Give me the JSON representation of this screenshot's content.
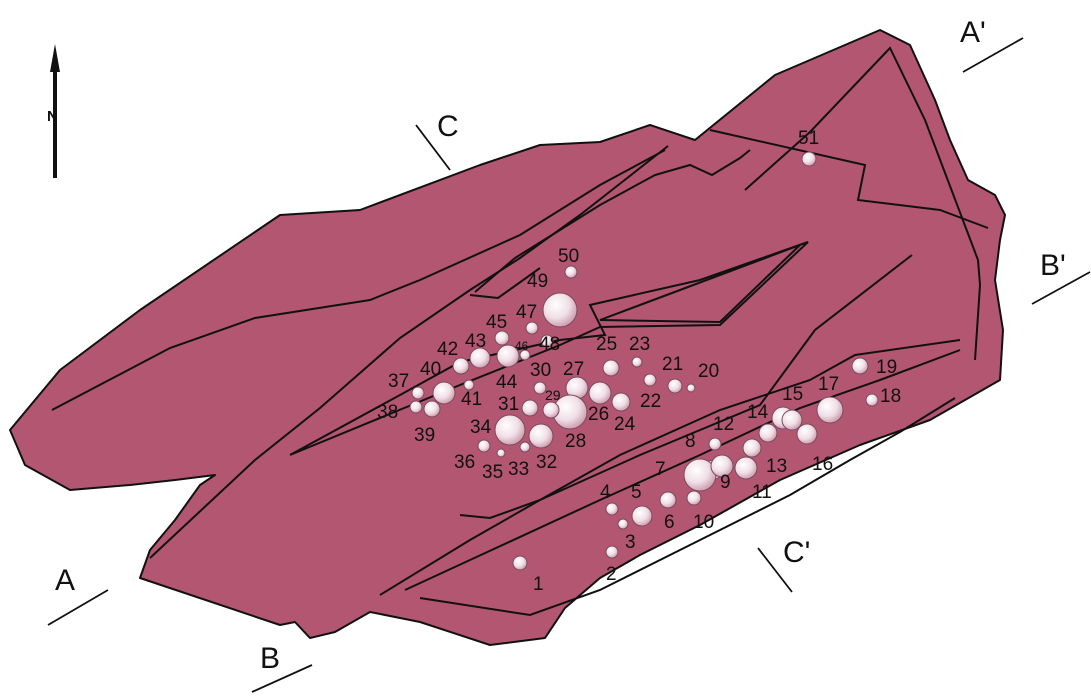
{
  "section_labels": {
    "a": "A",
    "a_prime": "A'",
    "b": "B",
    "b_prime": "B'",
    "c": "C",
    "c_prime": "C'"
  },
  "north_label": "N",
  "colors": {
    "outcrop": "#b35672",
    "outline": "#111111"
  },
  "hole_labels": [
    "1",
    "2",
    "3",
    "4",
    "5",
    "6",
    "7",
    "8",
    "9",
    "10",
    "11",
    "12",
    "13",
    "14",
    "15",
    "16",
    "17",
    "18",
    "19",
    "20",
    "21",
    "22",
    "23",
    "24",
    "25",
    "26",
    "27",
    "28",
    "29",
    "30",
    "31",
    "32",
    "33",
    "34",
    "35",
    "36",
    "37",
    "38",
    "39",
    "40",
    "41",
    "42",
    "43",
    "44",
    "45",
    "46",
    "47",
    "48",
    "49",
    "50",
    "51"
  ]
}
